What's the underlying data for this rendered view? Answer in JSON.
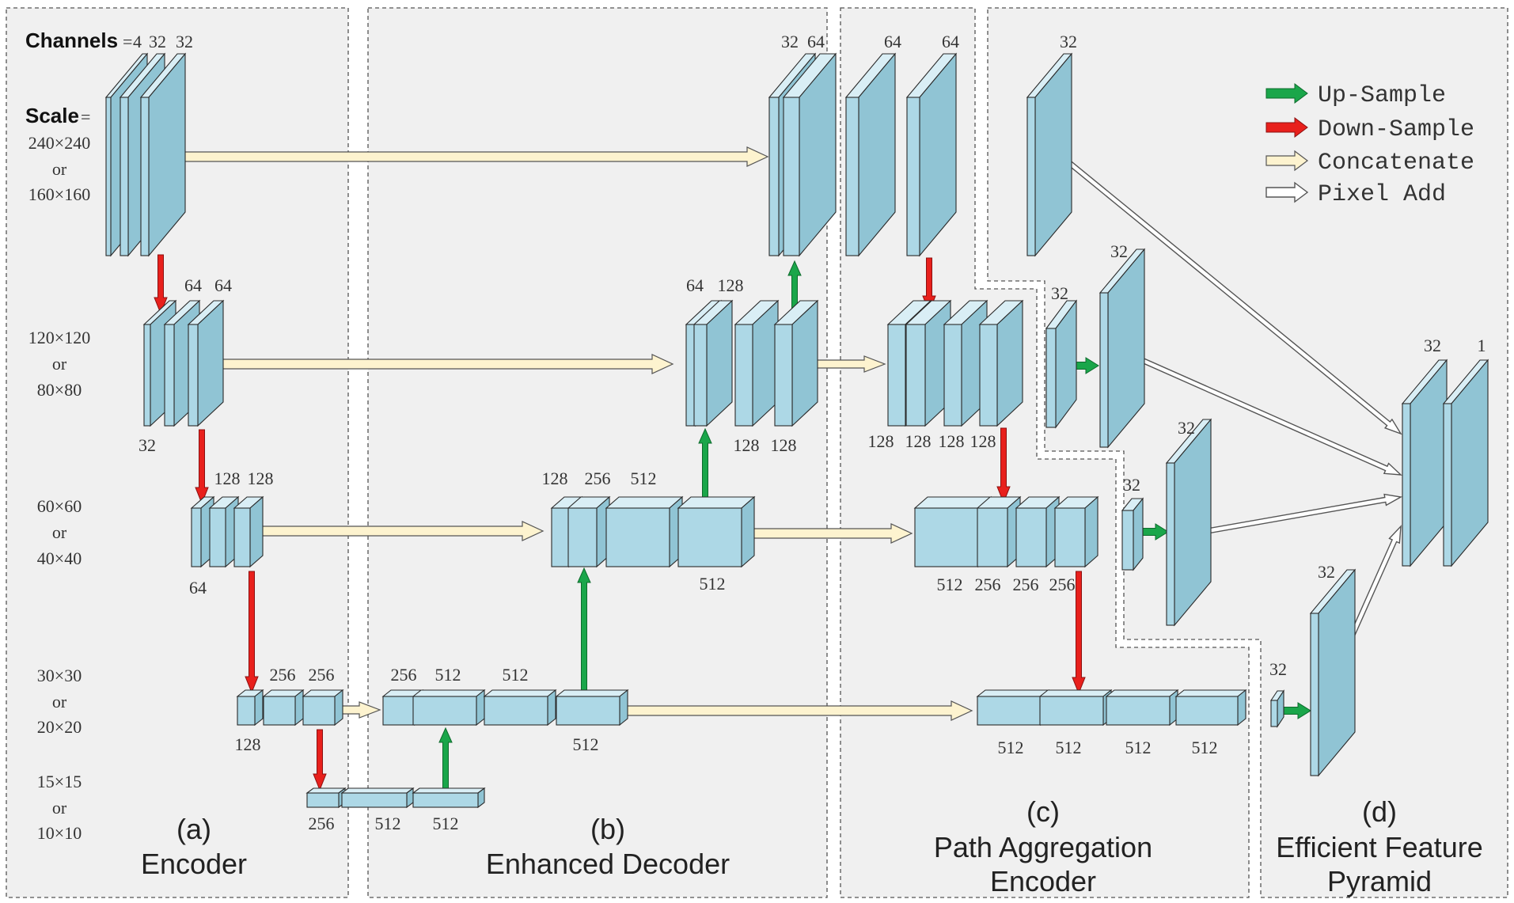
{
  "header": {
    "channels_label": "Channels",
    "channels_eq": "=",
    "channels_values": [
      "4",
      "32",
      "32"
    ],
    "scale_label": "Scale",
    "scale_eq": "="
  },
  "scales": [
    [
      "240×240",
      "or",
      "160×160"
    ],
    [
      "120×120",
      "or",
      "80×80"
    ],
    [
      "60×60",
      "or",
      "40×40"
    ],
    [
      "30×30",
      "or",
      "20×20"
    ],
    [
      "15×15",
      "or",
      "10×10"
    ]
  ],
  "channel_labels": {
    "enc_l2_top": [
      "64",
      "64"
    ],
    "enc_l2_bottom": "32",
    "enc_l3_top": [
      "128",
      "128"
    ],
    "enc_l3_bottom": "64",
    "enc_l4_top": [
      "256",
      "256"
    ],
    "enc_l4_bottom": "128",
    "enc_l5": [
      "256",
      "512",
      "512"
    ],
    "dec_l4": [
      "256",
      "512",
      "512"
    ],
    "dec_l4_bottom": "512",
    "dec_l3_top": [
      "128",
      "256",
      "512"
    ],
    "dec_l3_bottom": "512",
    "dec_l2_top": [
      "64",
      "128"
    ],
    "dec_l2_bottom": [
      "128",
      "128"
    ],
    "dec_l1_top": [
      "32",
      "64"
    ],
    "pae_l1_top": [
      "64",
      "64"
    ],
    "pae_l2_bottom": [
      "128",
      "128",
      "128",
      "128"
    ],
    "pae_l3_bottom": [
      "512",
      "256",
      "256",
      "256"
    ],
    "pae_l4_bottom": [
      "512",
      "512",
      "512",
      "512"
    ],
    "efp": [
      "32",
      "32",
      "32",
      "32",
      "32",
      "32",
      "32",
      "32",
      "1"
    ]
  },
  "panels": [
    {
      "letter": "(a)",
      "title": [
        "Encoder"
      ]
    },
    {
      "letter": "(b)",
      "title": [
        "Enhanced Decoder"
      ]
    },
    {
      "letter": "(c)",
      "title": [
        "Path Aggregation",
        "Encoder"
      ]
    },
    {
      "letter": "(d)",
      "title": [
        "Efficient Feature",
        "Pyramid"
      ]
    }
  ],
  "legend": [
    {
      "label": "Up-Sample",
      "kind": "up",
      "color": "#1aa64a"
    },
    {
      "label": "Down-Sample",
      "kind": "down",
      "color": "#e8201c"
    },
    {
      "label": "Concatenate",
      "kind": "concat",
      "color": "#fdf3cf"
    },
    {
      "label": "Pixel Add",
      "kind": "add",
      "color": "#ffffff"
    }
  ],
  "colors": {
    "block_front": "#add8e6",
    "block_top": "#d9eef5",
    "block_side": "#90c4d4",
    "panel_bg": "#f0f0f0"
  }
}
